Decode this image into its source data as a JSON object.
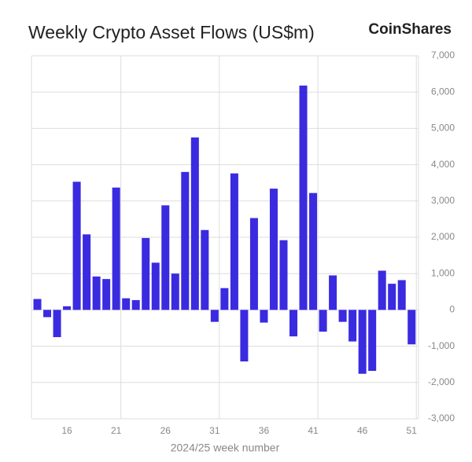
{
  "chart_data": {
    "type": "bar",
    "title": "Weekly Crypto Asset Flows (US$m)",
    "brand": "CoinShares",
    "x_label": "2024/25 week number",
    "x": [
      13,
      14,
      15,
      16,
      17,
      18,
      19,
      20,
      21,
      22,
      23,
      24,
      25,
      26,
      27,
      28,
      29,
      30,
      31,
      32,
      33,
      34,
      35,
      36,
      37,
      38,
      39,
      40,
      41,
      42,
      43,
      44,
      45,
      46,
      47,
      48,
      49,
      50,
      51
    ],
    "values": [
      300,
      -200,
      -750,
      100,
      3530,
      2080,
      920,
      850,
      3370,
      320,
      270,
      1980,
      1300,
      2880,
      1000,
      3800,
      4750,
      2200,
      -330,
      600,
      3760,
      -1420,
      2530,
      -350,
      3340,
      1920,
      -730,
      6180,
      3220,
      -600,
      950,
      -330,
      -870,
      -1760,
      -1680,
      1080,
      720,
      820,
      -950
    ],
    "color": "#3a2be0",
    "xlim": [
      12.4,
      51.7
    ],
    "xticks": [
      16,
      21,
      26,
      31,
      36,
      41,
      46,
      51
    ],
    "ylim": [
      -3000,
      7000
    ],
    "yticks": [
      {
        "value": -3000,
        "label": "-3,000"
      },
      {
        "value": -2000,
        "label": "-2,000"
      },
      {
        "value": -1000,
        "label": "-1,000"
      },
      0,
      {
        "value": 1000,
        "label": "1,000"
      },
      {
        "value": 2000,
        "label": "2,000"
      },
      {
        "value": 3000,
        "label": "3,000"
      },
      {
        "value": 4000,
        "label": "4,000"
      },
      {
        "value": 5000,
        "label": "5,000"
      },
      {
        "value": 6000,
        "label": "6,000"
      },
      {
        "value": 7000,
        "label": "7,000"
      }
    ],
    "grid": true
  }
}
